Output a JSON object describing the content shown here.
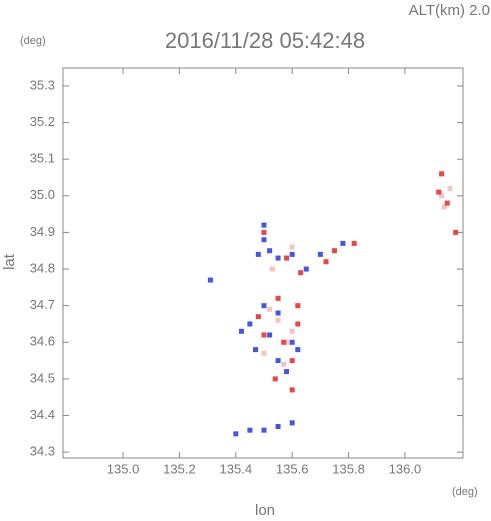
{
  "chart_data": {
    "type": "scatter",
    "header_right": "ALT(km) 2.0",
    "title": "2016/11/28 05:42:48",
    "y_unit": "(deg)",
    "x_unit": "(deg)",
    "ylabel": "lat",
    "xlabel": "lon",
    "xlim": [
      134.787,
      136.206
    ],
    "ylim": [
      34.284,
      35.349
    ],
    "xticks": [
      {
        "value": 135.0,
        "label": "135.0"
      },
      135.2,
      135.4,
      135.6,
      135.8,
      {
        "value": 136.0,
        "label": "136.0"
      }
    ],
    "yticks": [
      34.3,
      34.4,
      34.5,
      34.6,
      34.7,
      34.8,
      34.9,
      {
        "value": 35.0,
        "label": "35.0"
      },
      35.1,
      35.2,
      35.3
    ],
    "series": [
      {
        "color": "#f4c4c4",
        "x": [
          135.55,
          135.6,
          135.5,
          135.57,
          136.13,
          136.16,
          136.14,
          135.6,
          135.53,
          135.58,
          135.52
        ],
        "y": [
          34.66,
          34.63,
          34.57,
          34.54,
          35.0,
          35.02,
          34.97,
          34.86,
          34.8,
          34.6,
          34.69
        ]
      },
      {
        "color": "#4455ee",
        "x": [
          135.52,
          135.48,
          135.55,
          135.6,
          135.7,
          135.78,
          135.5,
          135.45,
          135.42,
          135.5,
          135.55,
          135.52,
          135.6,
          135.47,
          135.55,
          135.62,
          135.58,
          135.4,
          135.45,
          135.5,
          135.55,
          135.6,
          135.31,
          135.65,
          135.5
        ],
        "y": [
          34.85,
          34.84,
          34.83,
          34.84,
          34.84,
          34.87,
          34.88,
          34.65,
          34.63,
          34.7,
          34.68,
          34.62,
          34.6,
          34.58,
          34.55,
          34.58,
          34.52,
          34.35,
          34.36,
          34.36,
          34.37,
          34.38,
          34.77,
          34.8,
          34.92
        ]
      },
      {
        "color": "#ee4444",
        "x": [
          135.5,
          135.58,
          135.63,
          135.72,
          135.82,
          135.75,
          135.55,
          135.62,
          135.5,
          135.57,
          135.6,
          135.54,
          135.6,
          135.48,
          135.62,
          136.12,
          136.15,
          136.18,
          136.13
        ],
        "y": [
          34.9,
          34.83,
          34.79,
          34.82,
          34.87,
          34.85,
          34.72,
          34.65,
          34.62,
          34.6,
          34.55,
          34.5,
          34.47,
          34.67,
          34.7,
          35.01,
          34.98,
          34.9,
          35.06
        ]
      }
    ]
  }
}
